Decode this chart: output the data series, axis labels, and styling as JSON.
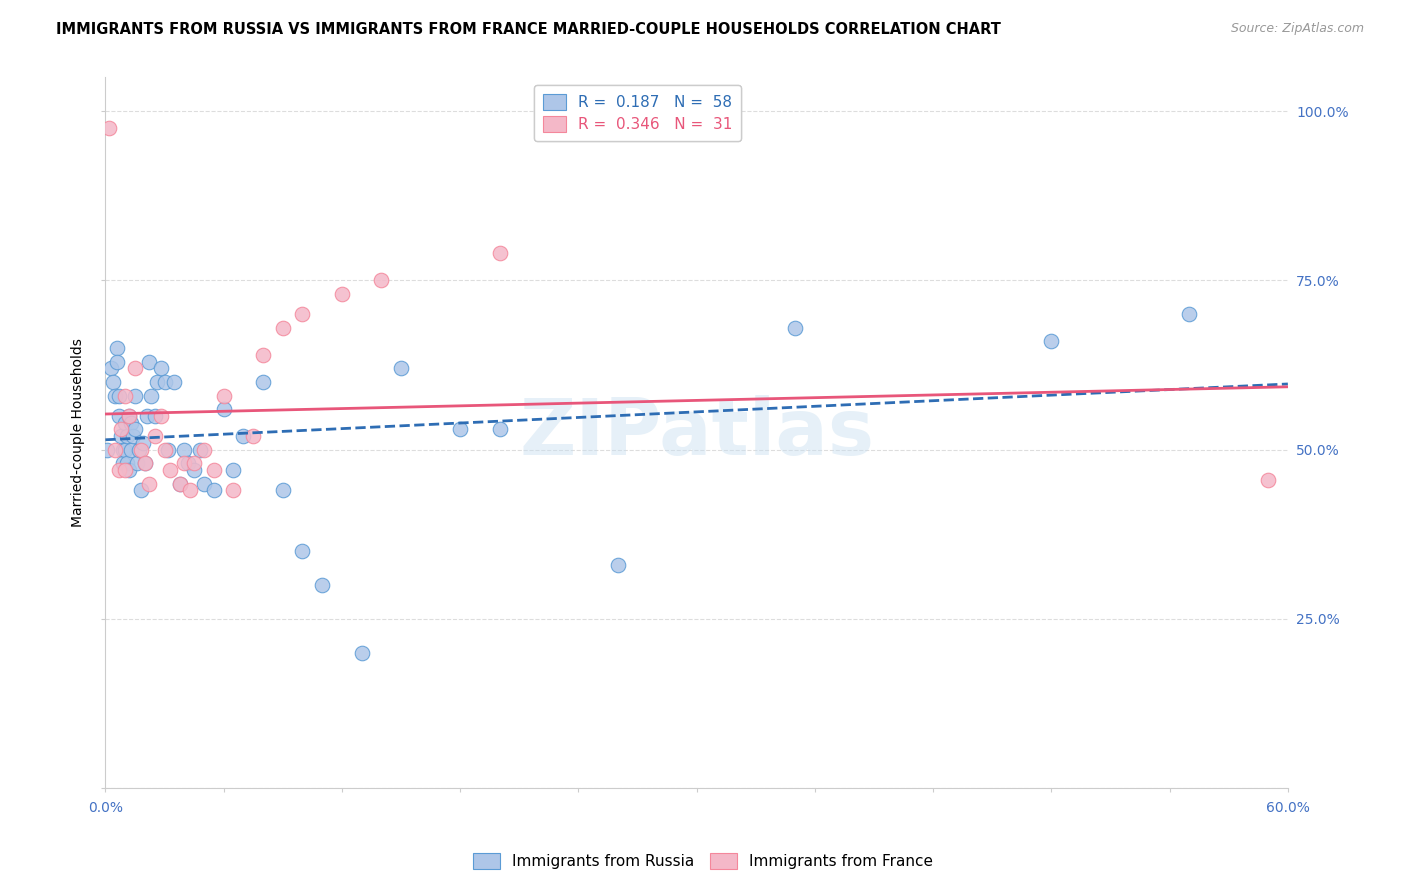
{
  "title": "IMMIGRANTS FROM RUSSIA VS IMMIGRANTS FROM FRANCE MARRIED-COUPLE HOUSEHOLDS CORRELATION CHART",
  "source": "Source: ZipAtlas.com",
  "ylabel_left": "Married-couple Households",
  "watermark": "ZIPatlas",
  "blue_color": "#5b9bd5",
  "pink_color": "#f4879b",
  "blue_line_color": "#2e6db4",
  "pink_line_color": "#e8567a",
  "blue_scatter_color": "#aec6e8",
  "pink_scatter_color": "#f4b8c8",
  "legend_russia_R": "0.187",
  "legend_russia_N": "58",
  "legend_france_R": "0.346",
  "legend_france_N": "31",
  "russia_x": [
    0.001,
    0.003,
    0.004,
    0.005,
    0.006,
    0.006,
    0.007,
    0.007,
    0.008,
    0.009,
    0.009,
    0.01,
    0.01,
    0.011,
    0.011,
    0.012,
    0.012,
    0.013,
    0.013,
    0.014,
    0.015,
    0.015,
    0.016,
    0.017,
    0.018,
    0.019,
    0.02,
    0.021,
    0.022,
    0.023,
    0.025,
    0.026,
    0.028,
    0.03,
    0.032,
    0.035,
    0.038,
    0.04,
    0.042,
    0.045,
    0.048,
    0.05,
    0.055,
    0.06,
    0.065,
    0.07,
    0.08,
    0.09,
    0.1,
    0.11,
    0.13,
    0.15,
    0.18,
    0.2,
    0.26,
    0.35,
    0.48,
    0.55
  ],
  "russia_y": [
    0.5,
    0.62,
    0.6,
    0.58,
    0.65,
    0.63,
    0.58,
    0.55,
    0.52,
    0.5,
    0.48,
    0.54,
    0.5,
    0.52,
    0.48,
    0.55,
    0.47,
    0.54,
    0.5,
    0.52,
    0.58,
    0.53,
    0.48,
    0.5,
    0.44,
    0.51,
    0.48,
    0.55,
    0.63,
    0.58,
    0.55,
    0.6,
    0.62,
    0.6,
    0.5,
    0.6,
    0.45,
    0.5,
    0.48,
    0.47,
    0.5,
    0.45,
    0.44,
    0.56,
    0.47,
    0.52,
    0.6,
    0.44,
    0.35,
    0.3,
    0.2,
    0.62,
    0.53,
    0.53,
    0.33,
    0.68,
    0.66,
    0.7
  ],
  "france_x": [
    0.002,
    0.005,
    0.007,
    0.008,
    0.01,
    0.01,
    0.012,
    0.015,
    0.018,
    0.02,
    0.022,
    0.025,
    0.028,
    0.03,
    0.033,
    0.038,
    0.04,
    0.043,
    0.045,
    0.05,
    0.055,
    0.06,
    0.065,
    0.075,
    0.08,
    0.09,
    0.1,
    0.12,
    0.14,
    0.2,
    0.59
  ],
  "france_y": [
    0.975,
    0.5,
    0.47,
    0.53,
    0.47,
    0.58,
    0.55,
    0.62,
    0.5,
    0.48,
    0.45,
    0.52,
    0.55,
    0.5,
    0.47,
    0.45,
    0.48,
    0.44,
    0.48,
    0.5,
    0.47,
    0.58,
    0.44,
    0.52,
    0.64,
    0.68,
    0.7,
    0.73,
    0.75,
    0.79,
    0.455
  ],
  "xlim": [
    0.0,
    0.6
  ],
  "ylim": [
    0.0,
    1.05
  ],
  "x_ticks": [
    0.0,
    0.06,
    0.12,
    0.18,
    0.24,
    0.3,
    0.36,
    0.42,
    0.48,
    0.54,
    0.6
  ],
  "y_ticks": [
    0.0,
    0.25,
    0.5,
    0.75,
    1.0
  ],
  "y_tick_labels_right": [
    "",
    "25.0%",
    "50.0%",
    "75.0%",
    "100.0%"
  ],
  "grid_color": "#dddddd",
  "axis_color": "#cccccc",
  "tick_label_color": "#4472c4",
  "title_fontsize": 10.5,
  "source_fontsize": 9,
  "axis_label_fontsize": 10,
  "tick_fontsize": 10,
  "legend_fontsize": 11,
  "scatter_size": 110,
  "scatter_alpha": 0.85
}
